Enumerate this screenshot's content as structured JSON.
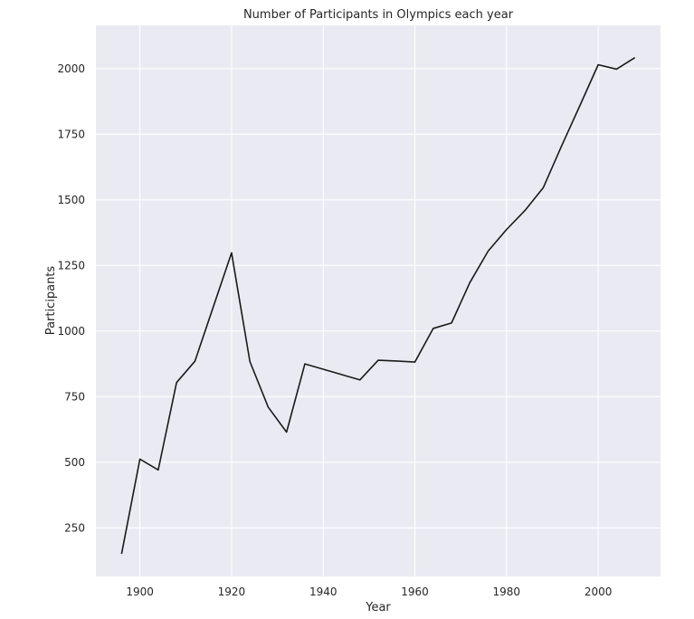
{
  "chart_data": {
    "type": "line",
    "title": "Number of Participants in Olympics each year",
    "xlabel": "Year",
    "ylabel": "Participants",
    "xlim": [
      1890.4,
      2013.6
    ],
    "ylim": [
      65,
      2165
    ],
    "xticks": [
      1900,
      1920,
      1940,
      1960,
      1980,
      2000
    ],
    "xtick_labels": [
      "1900",
      "1920",
      "1940",
      "1960",
      "1980",
      "2000"
    ],
    "yticks": [
      250,
      500,
      750,
      1000,
      1250,
      1500,
      1750,
      2000
    ],
    "ytick_labels": [
      "250",
      "500",
      "750",
      "1000",
      "1250",
      "1500",
      "1750",
      "2000"
    ],
    "grid": true,
    "series": [
      {
        "x": [
          1896,
          1900,
          1904,
          1908,
          1912,
          1920,
          1924,
          1928,
          1932,
          1936,
          1948,
          1952,
          1956,
          1960,
          1964,
          1968,
          1972,
          1976,
          1980,
          1984,
          1988,
          1992,
          1996,
          2000,
          2004,
          2008
        ],
        "y": [
          151,
          512,
          471,
          804,
          885,
          1298,
          884,
          710,
          615,
          875,
          814,
          889,
          886,
          882,
          1010,
          1031,
          1185,
          1305,
          1387,
          1459,
          1546,
          1705,
          1859,
          2015,
          1998,
          2042
        ],
        "color": "#1a1a1a"
      }
    ],
    "style": {
      "background": "#eaeaf2",
      "grid_color": "#ffffff",
      "line_color": "#1a1a1a"
    }
  }
}
